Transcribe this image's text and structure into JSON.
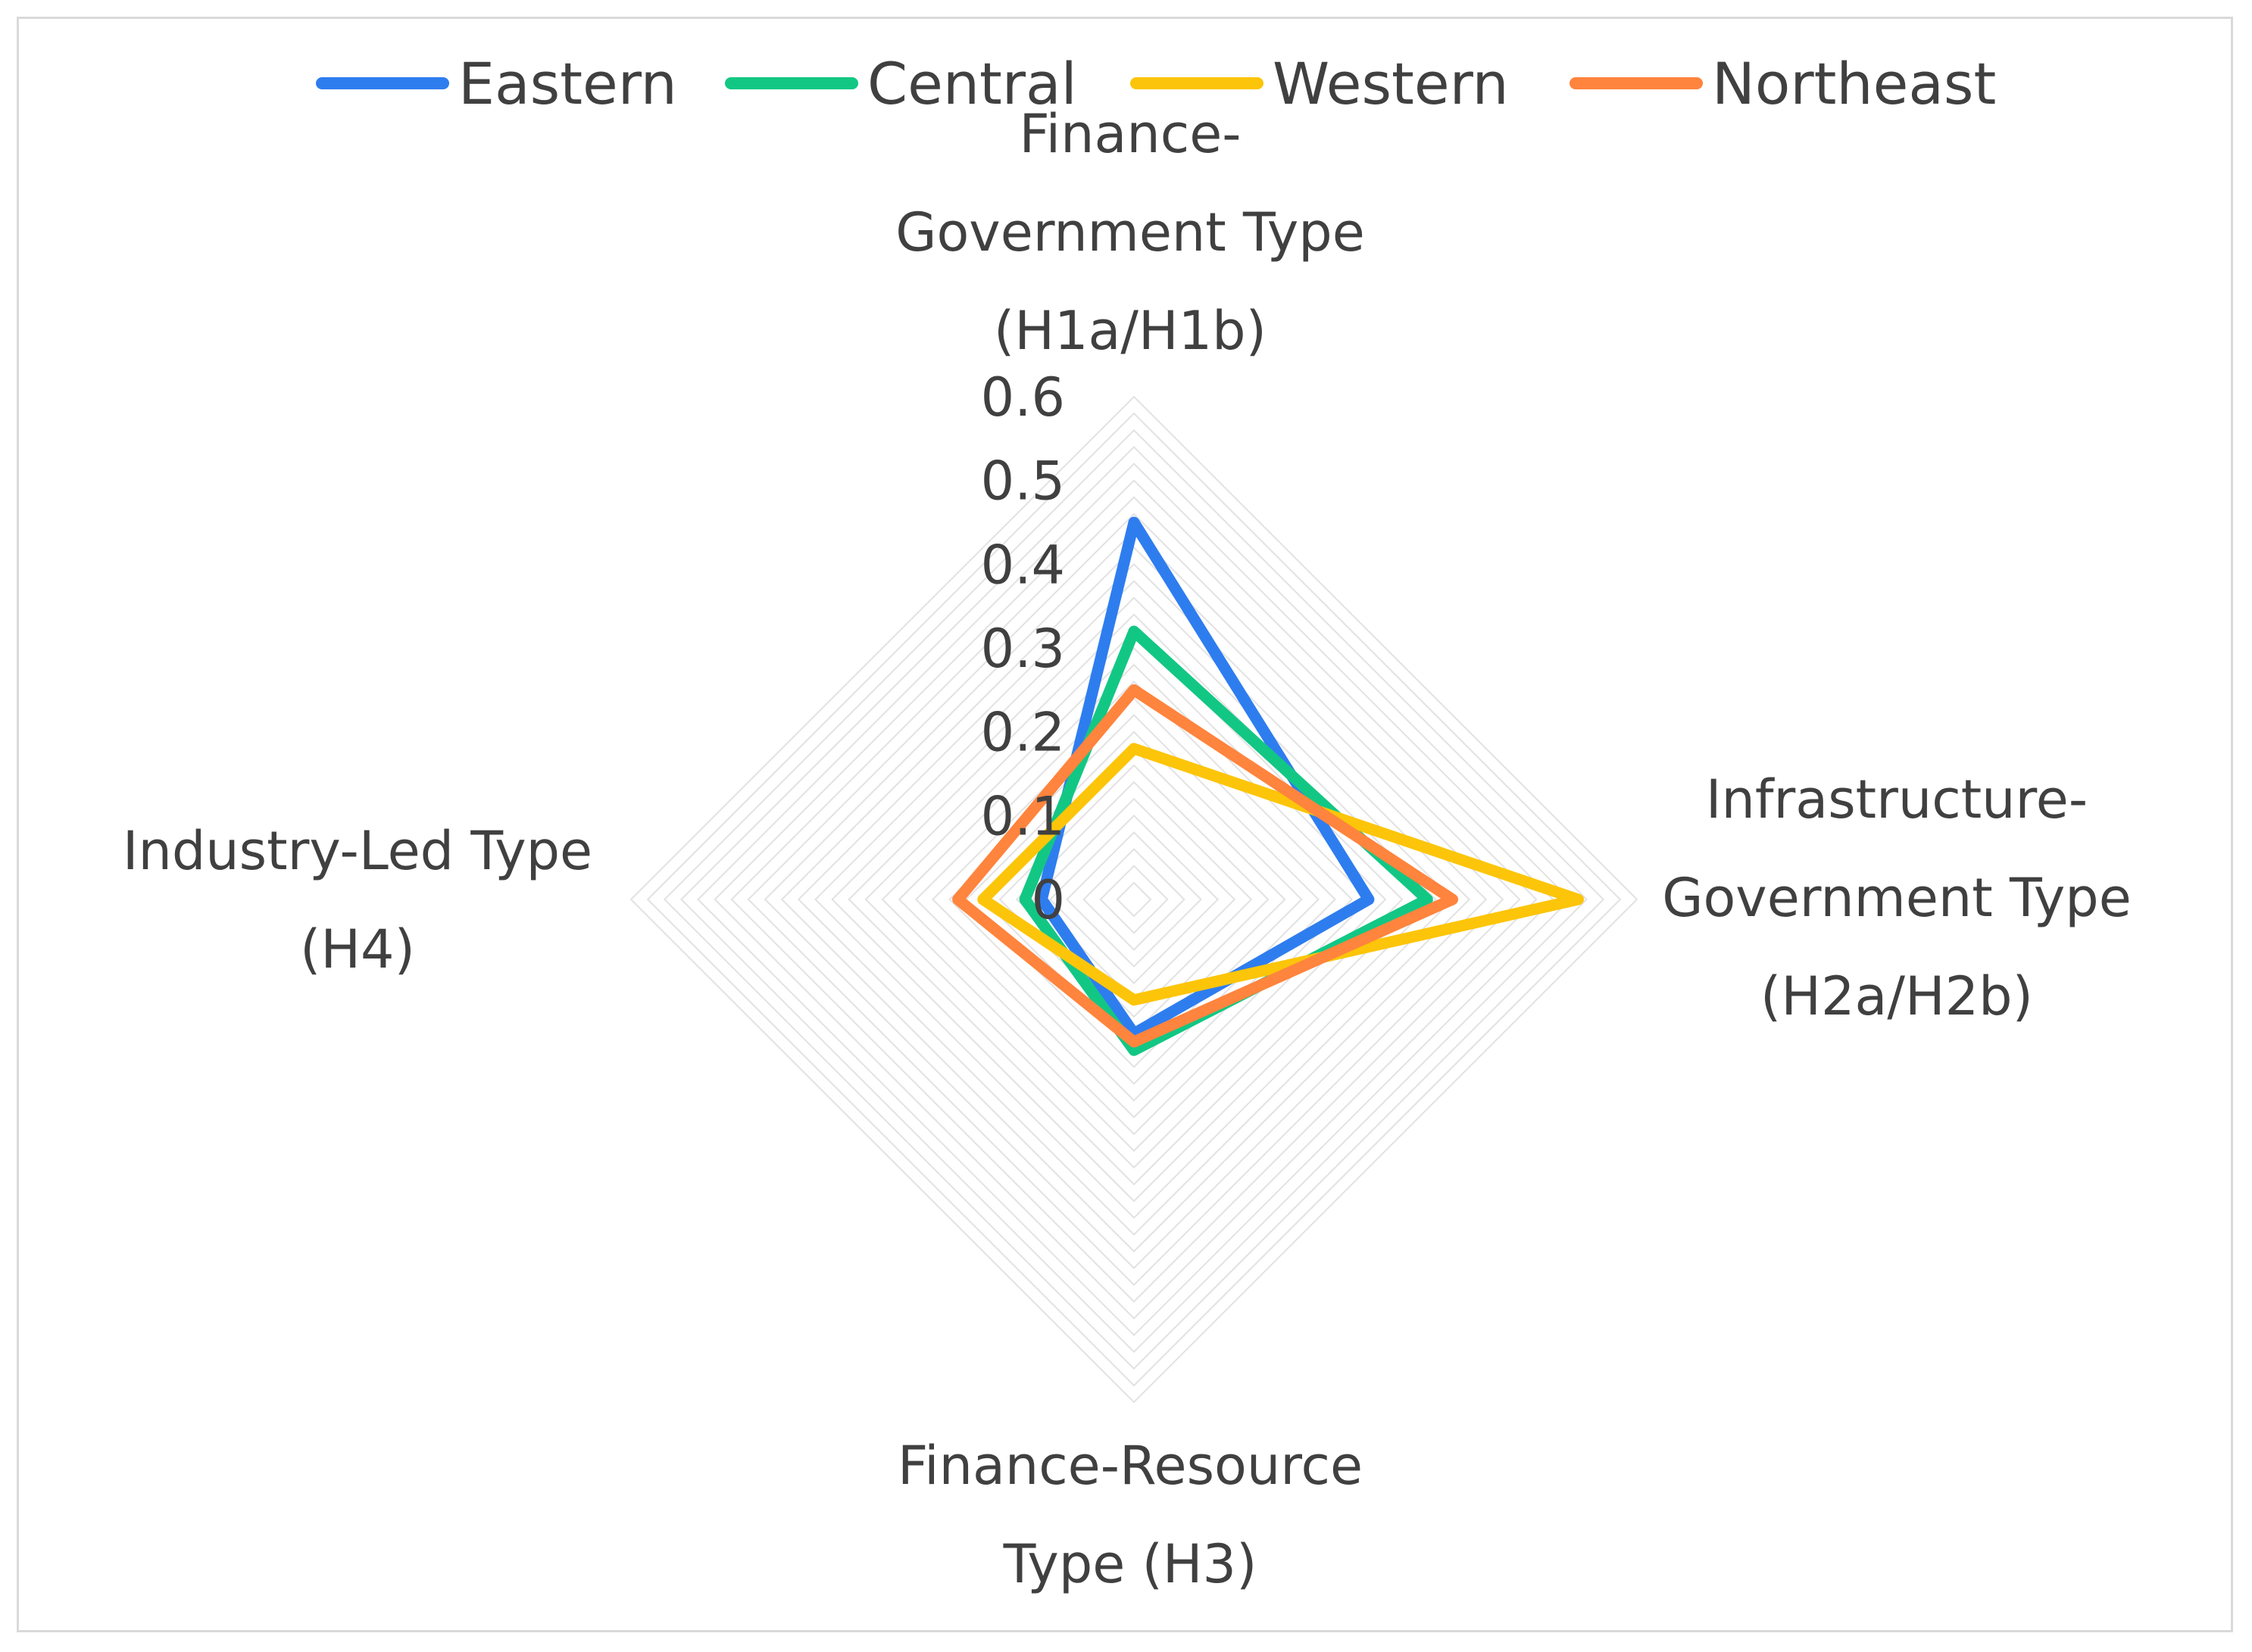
{
  "chart_data": {
    "type": "radar",
    "title": "",
    "axes": [
      {
        "key": "h1",
        "label_lines": [
          "Finance-",
          "Government Type",
          "(H1a/H1b)"
        ]
      },
      {
        "key": "h2",
        "label_lines": [
          "Infrastructure-",
          "Government Type",
          "(H2a/H2b)"
        ]
      },
      {
        "key": "h3",
        "label_lines": [
          "Finance-Resource",
          "Type (H3)"
        ]
      },
      {
        "key": "h4",
        "label_lines": [
          "Industry-Led Type",
          "(H4)"
        ]
      }
    ],
    "range": [
      0,
      0.6
    ],
    "ticks": [
      "0",
      "0.1",
      "0.2",
      "0.3",
      "0.4",
      "0.5",
      "0.6"
    ],
    "tick_values": [
      0,
      0.1,
      0.2,
      0.3,
      0.4,
      0.5,
      0.6
    ],
    "gridlines": true,
    "legend_position": "top",
    "series": [
      {
        "name": "Eastern",
        "color": "#2e7def",
        "values": [
          0.45,
          0.28,
          0.16,
          0.11
        ]
      },
      {
        "name": "Central",
        "color": "#12c784",
        "values": [
          0.32,
          0.35,
          0.18,
          0.13
        ]
      },
      {
        "name": "Western",
        "color": "#fcc509",
        "values": [
          0.18,
          0.53,
          0.12,
          0.18
        ]
      },
      {
        "name": "Northeast",
        "color": "#ff843d",
        "values": [
          0.25,
          0.38,
          0.17,
          0.21
        ]
      }
    ]
  }
}
